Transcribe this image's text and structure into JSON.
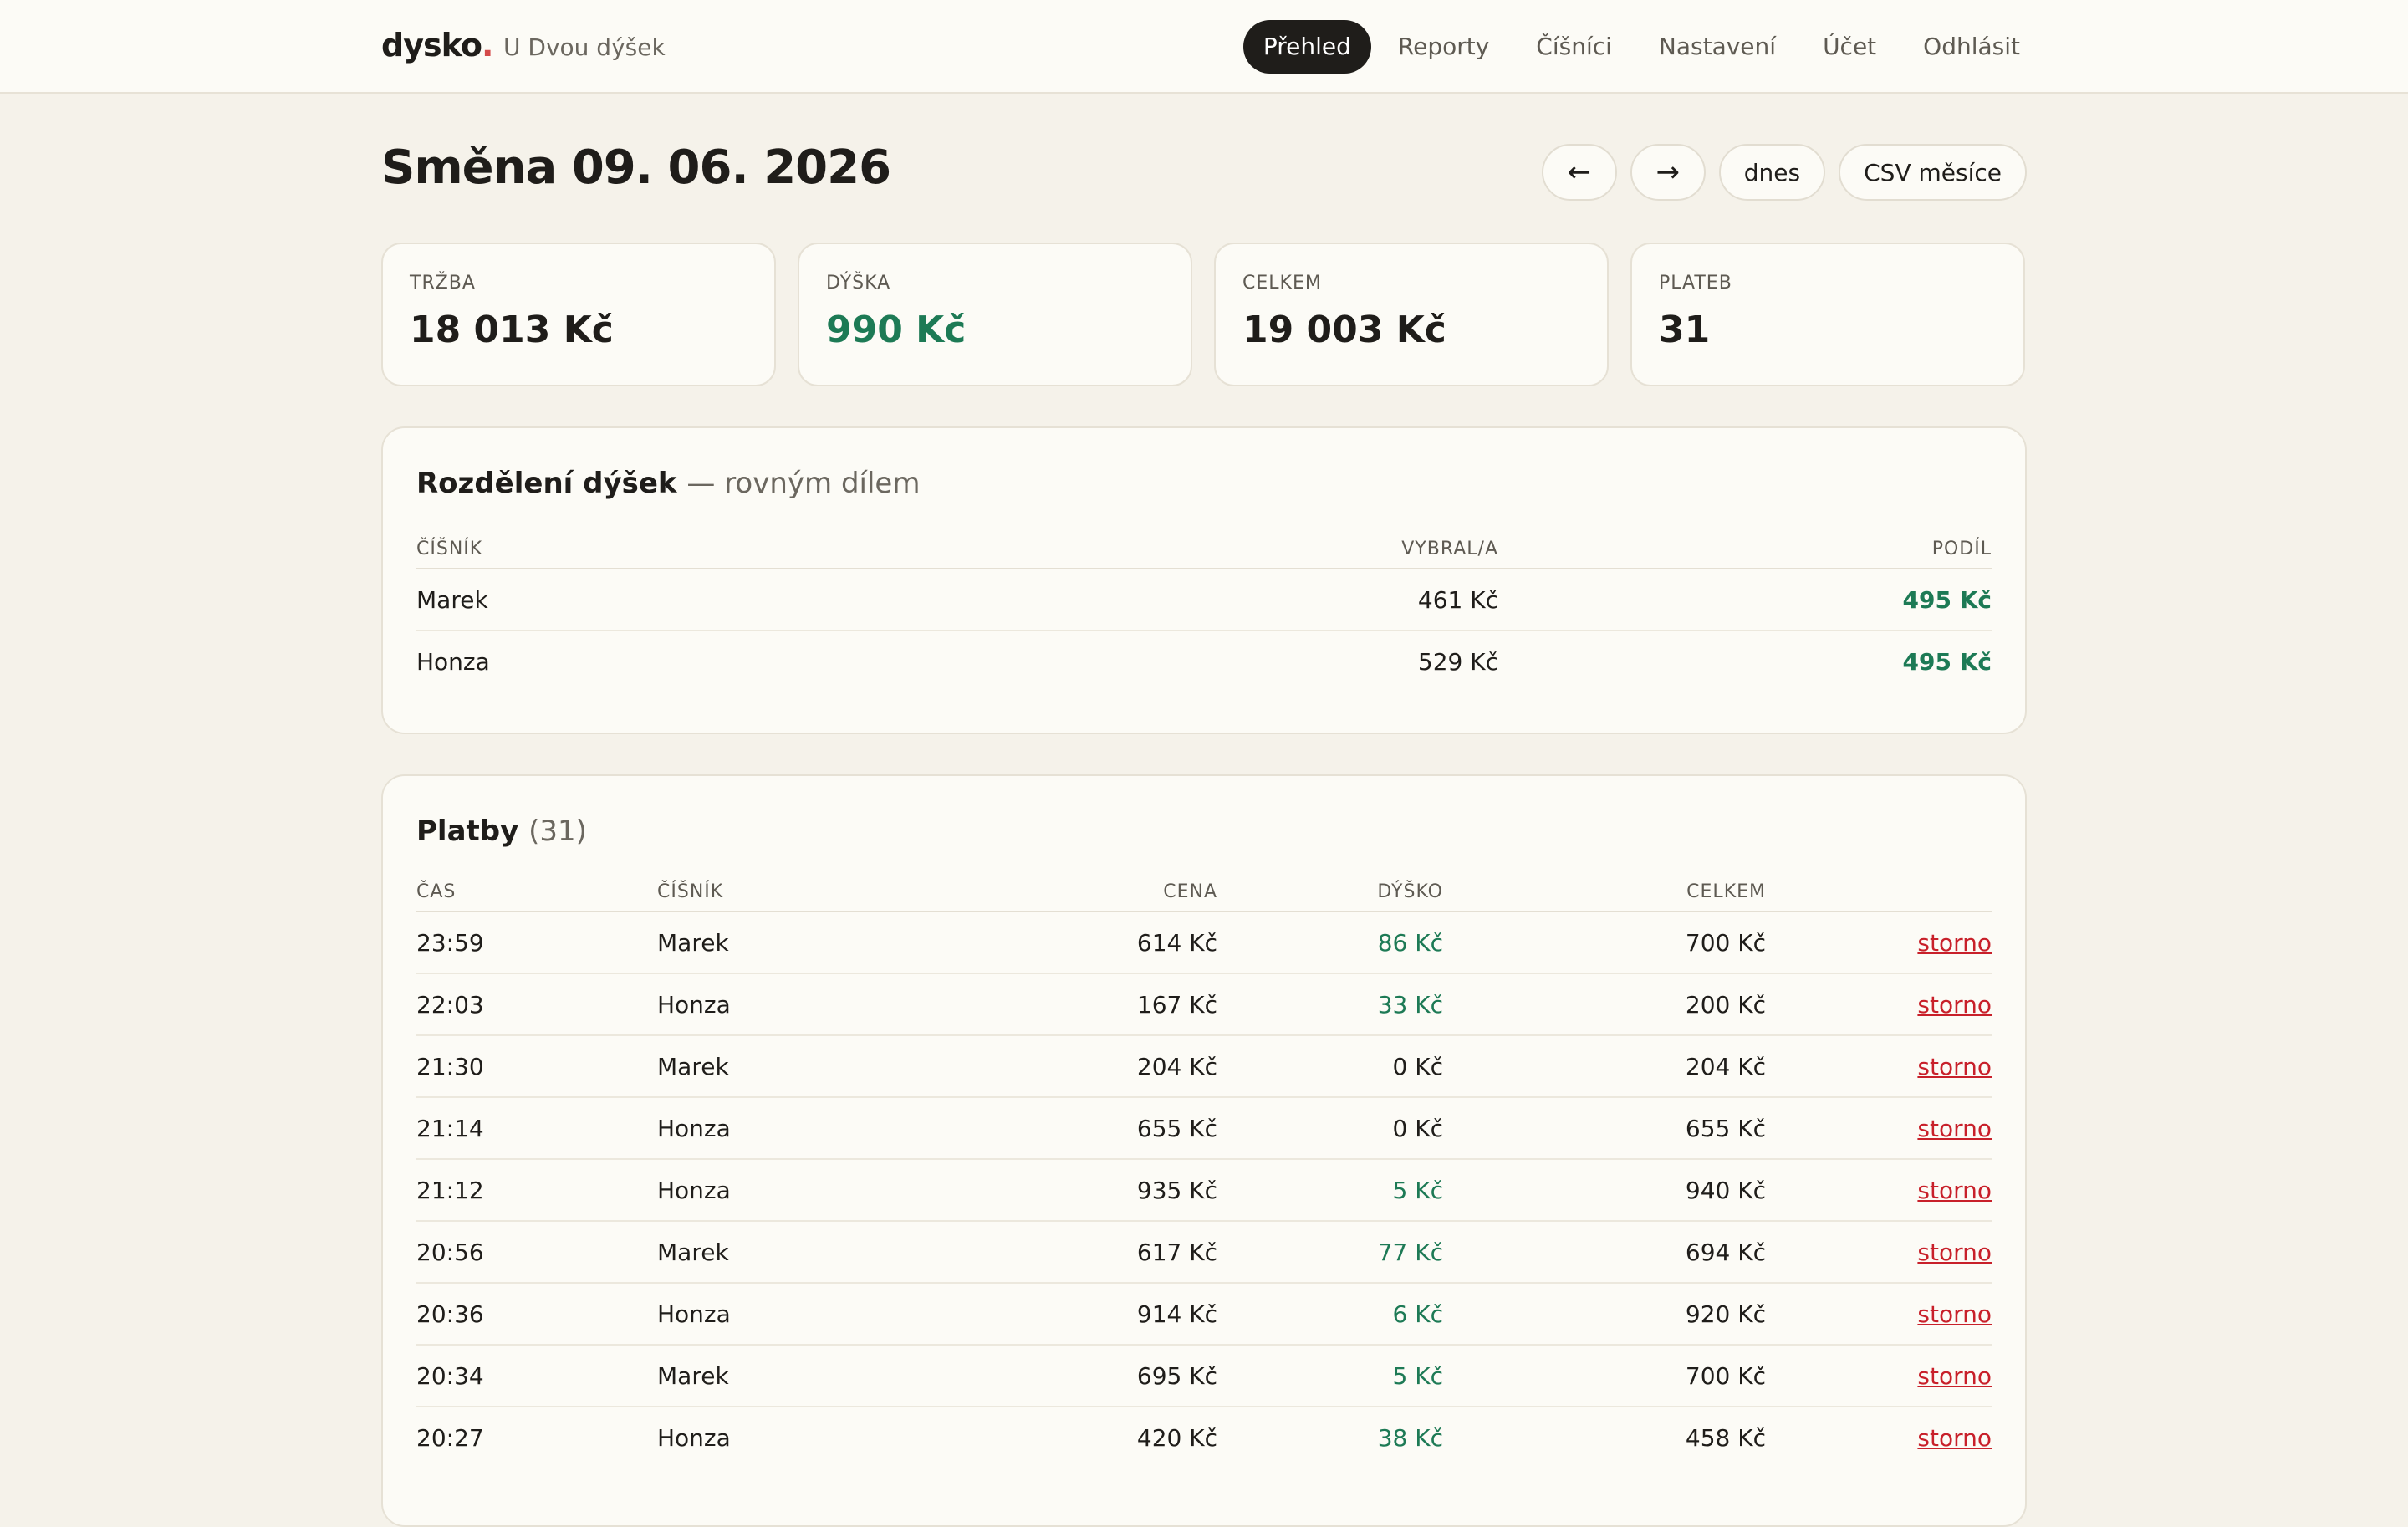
{
  "header": {
    "brand": "dysko",
    "brand_dot": ".",
    "venue": "U Dvou dýšek",
    "nav": [
      "Přehled",
      "Reporty",
      "Číšníci",
      "Nastavení",
      "Účet",
      "Odhlásit"
    ]
  },
  "page": {
    "title": "Směna 09. 06. 2026",
    "prev": "←",
    "next": "→",
    "today": "dnes",
    "csv": "CSV měsíce"
  },
  "stats": [
    {
      "label": "TRŽBA",
      "value": "18 013 Kč"
    },
    {
      "label": "DÝŠKA",
      "value": "990 Kč"
    },
    {
      "label": "CELKEM",
      "value": "19 003 Kč"
    },
    {
      "label": "PLATEB",
      "value": "31"
    }
  ],
  "split": {
    "title": "Rozdělení dýšek",
    "subtitle": "— rovným dílem",
    "headers": [
      "ČÍŠNÍK",
      "VYBRAL/A",
      "PODÍL"
    ],
    "rows": [
      {
        "waiter": "Marek",
        "collected": "461 Kč",
        "share": "495 Kč"
      },
      {
        "waiter": "Honza",
        "collected": "529 Kč",
        "share": "495 Kč"
      }
    ]
  },
  "payments": {
    "title": "Platby",
    "count": "(31)",
    "headers": [
      "ČAS",
      "ČÍŠNÍK",
      "CENA",
      "DÝŠKO",
      "CELKEM"
    ],
    "action_label": "storno",
    "rows": [
      {
        "time": "23:59",
        "waiter": "Marek",
        "price": "614 Kč",
        "tip": "86 Kč",
        "total": "700 Kč"
      },
      {
        "time": "22:03",
        "waiter": "Honza",
        "price": "167 Kč",
        "tip": "33 Kč",
        "total": "200 Kč"
      },
      {
        "time": "21:30",
        "waiter": "Marek",
        "price": "204 Kč",
        "tip": "0 Kč",
        "total": "204 Kč"
      },
      {
        "time": "21:14",
        "waiter": "Honza",
        "price": "655 Kč",
        "tip": "0 Kč",
        "total": "655 Kč"
      },
      {
        "time": "21:12",
        "waiter": "Honza",
        "price": "935 Kč",
        "tip": "5 Kč",
        "total": "940 Kč"
      },
      {
        "time": "20:56",
        "waiter": "Marek",
        "price": "617 Kč",
        "tip": "77 Kč",
        "total": "694 Kč"
      },
      {
        "time": "20:36",
        "waiter": "Honza",
        "price": "914 Kč",
        "tip": "6 Kč",
        "total": "920 Kč"
      },
      {
        "time": "20:34",
        "waiter": "Marek",
        "price": "695 Kč",
        "tip": "5 Kč",
        "total": "700 Kč"
      },
      {
        "time": "20:27",
        "waiter": "Honza",
        "price": "420 Kč",
        "tip": "38 Kč",
        "total": "458 Kč"
      }
    ]
  },
  "colors": {
    "accent_green": "#1d7a55",
    "storno_red": "#c8202a",
    "brand_dot": "#d44a4a",
    "background": "#f5f2ea"
  }
}
